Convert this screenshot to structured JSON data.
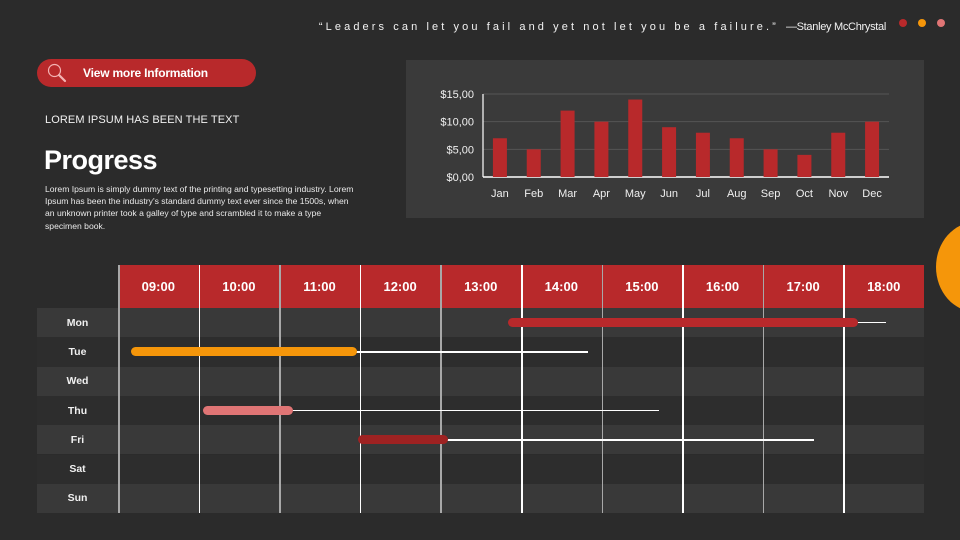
{
  "quote": {
    "text": "“Leaders can let you fail and yet not let you be a failure.”",
    "author": "—Stanley McChrystal"
  },
  "decor_dots": [
    "#b8292b",
    "#f5960a",
    "#e07575"
  ],
  "view_button": {
    "label": "View  more Information",
    "icon": "search-icon"
  },
  "subheading": "LOREM IPSUM HAS BEEN THE TEXT",
  "title": "Progress",
  "body": "Lorem Ipsum is simply dummy text of the printing and typesetting industry. Lorem Ipsum has been the industry's standard dummy text ever since the 1500s, when an unknown printer took a galley of type and scrambled it to make a type specimen book.",
  "colors": {
    "background": "#2b2b2b",
    "accent_red": "#b8292b",
    "accent_orange": "#f5960a",
    "accent_pink": "#e07575",
    "accent_dark_red": "#9e2222",
    "panel": "#3a3a3a"
  },
  "chart_data": {
    "type": "bar",
    "title": "",
    "xlabel": "",
    "ylabel": "",
    "categories": [
      "Jan",
      "Feb",
      "Mar",
      "Apr",
      "May",
      "Jun",
      "Jul",
      "Aug",
      "Sep",
      "Oct",
      "Nov",
      "Dec"
    ],
    "values": [
      7,
      5,
      12,
      10,
      14,
      9,
      8,
      7,
      5,
      4,
      8,
      10
    ],
    "yticks": [
      "$0,00",
      "$5,00",
      "$10,00",
      "$15,00"
    ],
    "ylim": [
      0,
      15
    ],
    "grid": true,
    "legend": false,
    "bar_color": "#b8292b"
  },
  "schedule": {
    "times": [
      "09:00",
      "10:00",
      "11:00",
      "12:00",
      "13:00",
      "14:00",
      "15:00",
      "16:00",
      "17:00",
      "18:00"
    ],
    "days": [
      "Mon",
      "Tue",
      "Wed",
      "Thu",
      "Fri",
      "Sat",
      "Sun"
    ],
    "tasks": [
      {
        "day": "Mon",
        "color": "#b8292b",
        "bar_start": 471,
        "bar_end": 821,
        "line_end": 849
      },
      {
        "day": "Tue",
        "color": "#f5960a",
        "bar_start": 94,
        "bar_end": 320,
        "line_end": 551
      },
      {
        "day": "Thu",
        "color": "#e07575",
        "bar_start": 166,
        "bar_end": 256,
        "line_end": 622
      },
      {
        "day": "Fri",
        "color": "#9e2222",
        "bar_start": 321,
        "bar_end": 411,
        "line_end": 777
      }
    ]
  }
}
